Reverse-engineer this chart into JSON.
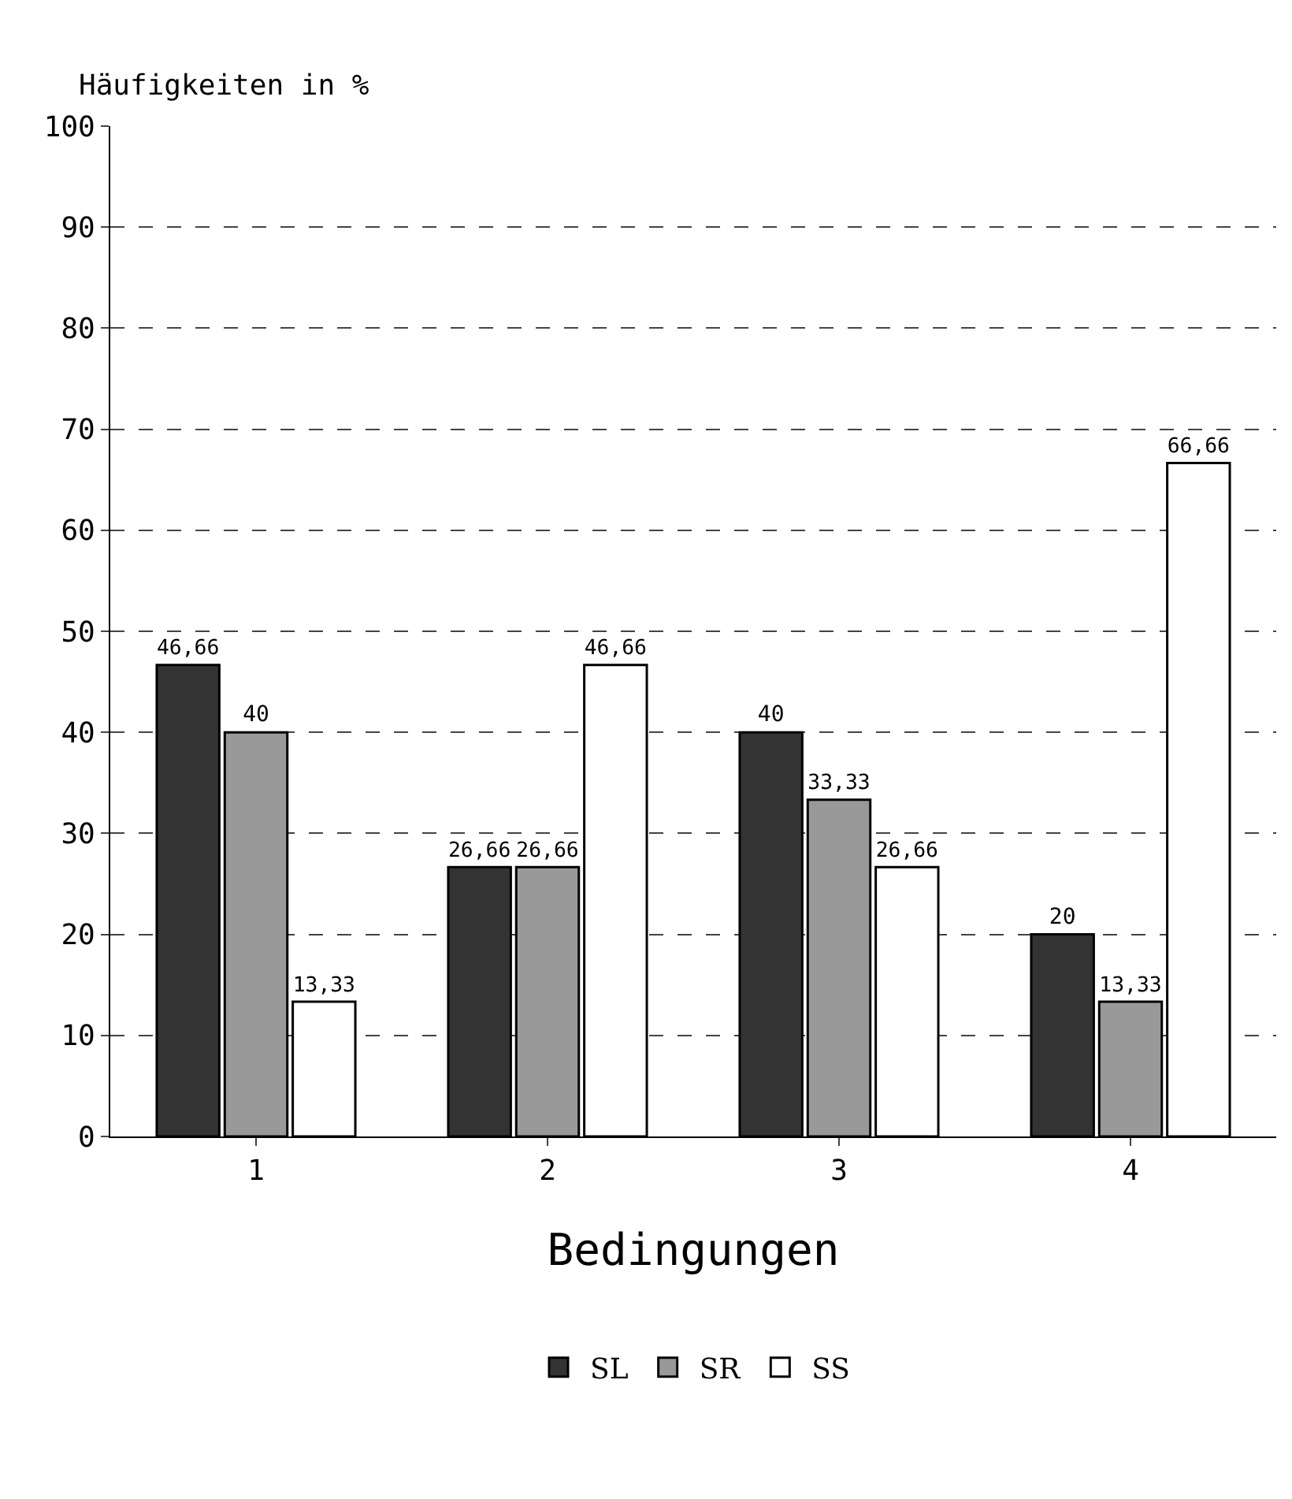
{
  "chart_data": {
    "type": "bar",
    "xlabel": "Bedingungen",
    "ylabel": "Häufigkeiten in %",
    "categories": [
      "1",
      "2",
      "3",
      "4"
    ],
    "series": [
      {
        "name": "SL",
        "color": "#333333",
        "values": [
          46.66,
          26.66,
          40,
          20
        ],
        "value_labels": [
          "46,66",
          "26,66",
          "40",
          "20"
        ]
      },
      {
        "name": "SR",
        "color": "#999999",
        "values": [
          40,
          26.66,
          33.33,
          13.33
        ],
        "value_labels": [
          "40",
          "26,66",
          "33,33",
          "13,33"
        ]
      },
      {
        "name": "SS",
        "color": "#ffffff",
        "values": [
          13.33,
          46.66,
          26.66,
          66.66
        ],
        "value_labels": [
          "13,33",
          "46,66",
          "26,66",
          "66,66"
        ]
      }
    ],
    "ylim": [
      0,
      100
    ],
    "yticks": [
      0,
      10,
      20,
      30,
      40,
      50,
      60,
      70,
      80,
      90,
      100
    ],
    "grid": "y",
    "legend": "bottom"
  }
}
